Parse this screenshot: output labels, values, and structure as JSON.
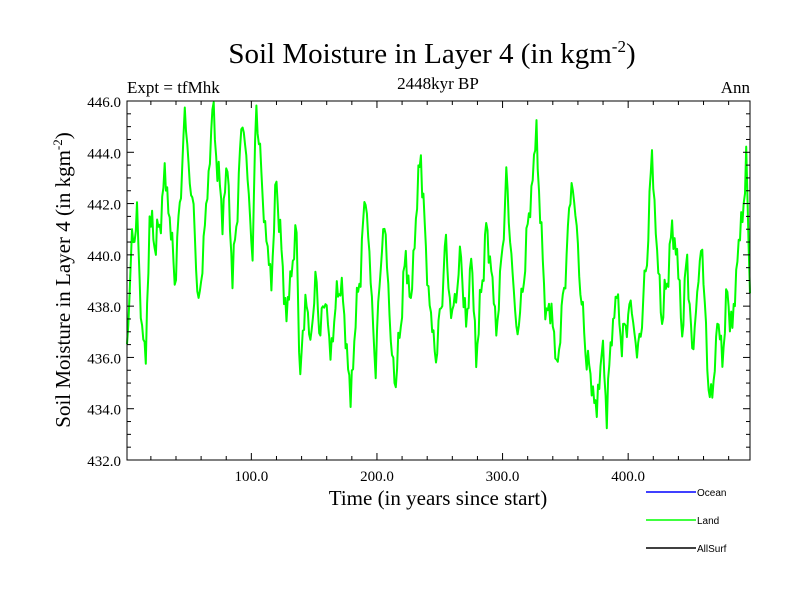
{
  "chart_data": {
    "type": "line",
    "title": "Soil Moisture in Layer 4 (in kgm",
    "title_sup": "-2",
    "title_close": ")",
    "subtitle": "2448kyr BP",
    "left_label": "Expt = tfMhk",
    "right_label": "Ann",
    "xlabel": "Time (in years since start)",
    "ylabel": "Soil Moisture in Layer 4 (in kgm",
    "ylabel_sup": "-2",
    "ylabel_close": ")",
    "xlim": [
      1,
      497
    ],
    "ylim": [
      432,
      446
    ],
    "x_ticks": [
      100,
      200,
      300,
      400
    ],
    "x_tick_labels": [
      "100.0",
      "200.0",
      "300.0",
      "400.0"
    ],
    "y_ticks": [
      432,
      434,
      436,
      438,
      440,
      442,
      444,
      446
    ],
    "y_tick_labels": [
      "432.0",
      "434.0",
      "436.0",
      "438.0",
      "440.0",
      "442.0",
      "444.0",
      "446.0"
    ],
    "legend": [
      {
        "name": "Ocean",
        "color": "#0000ff"
      },
      {
        "name": "Land",
        "color": "#00ff00"
      },
      {
        "name": "AllSurf",
        "color": "#000000"
      }
    ],
    "series": [
      {
        "name": "Land",
        "color": "#00ff00",
        "keypoints": [
          [
            1,
            436.5
          ],
          [
            5,
            440.5
          ],
          [
            9,
            441.4
          ],
          [
            13,
            437.0
          ],
          [
            16,
            436.0
          ],
          [
            19,
            441.5
          ],
          [
            23,
            440.5
          ],
          [
            27,
            441.0
          ],
          [
            31,
            443.2
          ],
          [
            35,
            441.5
          ],
          [
            39,
            439.0
          ],
          [
            43,
            441.8
          ],
          [
            47,
            445.5
          ],
          [
            51,
            443.0
          ],
          [
            55,
            441.0
          ],
          [
            58,
            437.7
          ],
          [
            62,
            440.5
          ],
          [
            66,
            443.0
          ],
          [
            69,
            445.8
          ],
          [
            73,
            443.5
          ],
          [
            77,
            441.5
          ],
          [
            81,
            443.5
          ],
          [
            85,
            439.0
          ],
          [
            89,
            442.0
          ],
          [
            93,
            445.5
          ],
          [
            97,
            443.0
          ],
          [
            101,
            440.0
          ],
          [
            104,
            446.0
          ],
          [
            108,
            443.0
          ],
          [
            112,
            440.5
          ],
          [
            116,
            439.0
          ],
          [
            120,
            443.0
          ],
          [
            124,
            440.0
          ],
          [
            128,
            437.5
          ],
          [
            132,
            439.5
          ],
          [
            136,
            440.8
          ],
          [
            139,
            435.0
          ],
          [
            143,
            438.5
          ],
          [
            147,
            436.5
          ],
          [
            151,
            439.0
          ],
          [
            155,
            437.0
          ],
          [
            159,
            438.5
          ],
          [
            163,
            436.0
          ],
          [
            167,
            438.0
          ],
          [
            171,
            439.0
          ],
          [
            175,
            437.0
          ],
          [
            179,
            434.3
          ],
          [
            183,
            437.5
          ],
          [
            187,
            439.5
          ],
          [
            191,
            442.5
          ],
          [
            195,
            439.0
          ],
          [
            199,
            435.5
          ],
          [
            203,
            440.0
          ],
          [
            207,
            441.0
          ],
          [
            211,
            436.5
          ],
          [
            215,
            435.0
          ],
          [
            219,
            437.5
          ],
          [
            223,
            440.0
          ],
          [
            227,
            438.0
          ],
          [
            231,
            441.5
          ],
          [
            235,
            444.0
          ],
          [
            239,
            440.0
          ],
          [
            243,
            437.5
          ],
          [
            247,
            436.0
          ],
          [
            251,
            438.0
          ],
          [
            255,
            440.5
          ],
          [
            259,
            437.5
          ],
          [
            263,
            438.5
          ],
          [
            267,
            440.0
          ],
          [
            271,
            437.0
          ],
          [
            275,
            440.0
          ],
          [
            279,
            436.0
          ],
          [
            283,
            438.5
          ],
          [
            287,
            441.0
          ],
          [
            291,
            439.5
          ],
          [
            295,
            437.0
          ],
          [
            299,
            439.5
          ],
          [
            303,
            443.0
          ],
          [
            307,
            440.0
          ],
          [
            311,
            437.0
          ],
          [
            315,
            438.0
          ],
          [
            319,
            440.5
          ],
          [
            323,
            442.5
          ],
          [
            327,
            444.8
          ],
          [
            331,
            440.5
          ],
          [
            335,
            437.5
          ],
          [
            339,
            438.0
          ],
          [
            343,
            435.5
          ],
          [
            347,
            437.5
          ],
          [
            351,
            440.0
          ],
          [
            355,
            443.0
          ],
          [
            359,
            441.0
          ],
          [
            363,
            438.0
          ],
          [
            367,
            436.0
          ],
          [
            371,
            435.0
          ],
          [
            375,
            433.8
          ],
          [
            379,
            436.5
          ],
          [
            383,
            434.0
          ],
          [
            387,
            437.0
          ],
          [
            391,
            438.5
          ],
          [
            395,
            436.5
          ],
          [
            399,
            437.5
          ],
          [
            403,
            438.0
          ],
          [
            407,
            436.0
          ],
          [
            411,
            437.5
          ],
          [
            415,
            440.0
          ],
          [
            419,
            444.0
          ],
          [
            423,
            440.0
          ],
          [
            427,
            437.5
          ],
          [
            431,
            439.0
          ],
          [
            435,
            441.0
          ],
          [
            439,
            440.0
          ],
          [
            443,
            437.0
          ],
          [
            447,
            440.0
          ],
          [
            451,
            436.0
          ],
          [
            455,
            438.5
          ],
          [
            459,
            440.5
          ],
          [
            463,
            435.5
          ],
          [
            467,
            434.2
          ],
          [
            471,
            437.5
          ],
          [
            475,
            436.0
          ],
          [
            479,
            438.5
          ],
          [
            483,
            437.0
          ],
          [
            487,
            440.0
          ],
          [
            491,
            441.5
          ],
          [
            494,
            443.6
          ],
          [
            497,
            438.5
          ]
        ]
      }
    ]
  }
}
